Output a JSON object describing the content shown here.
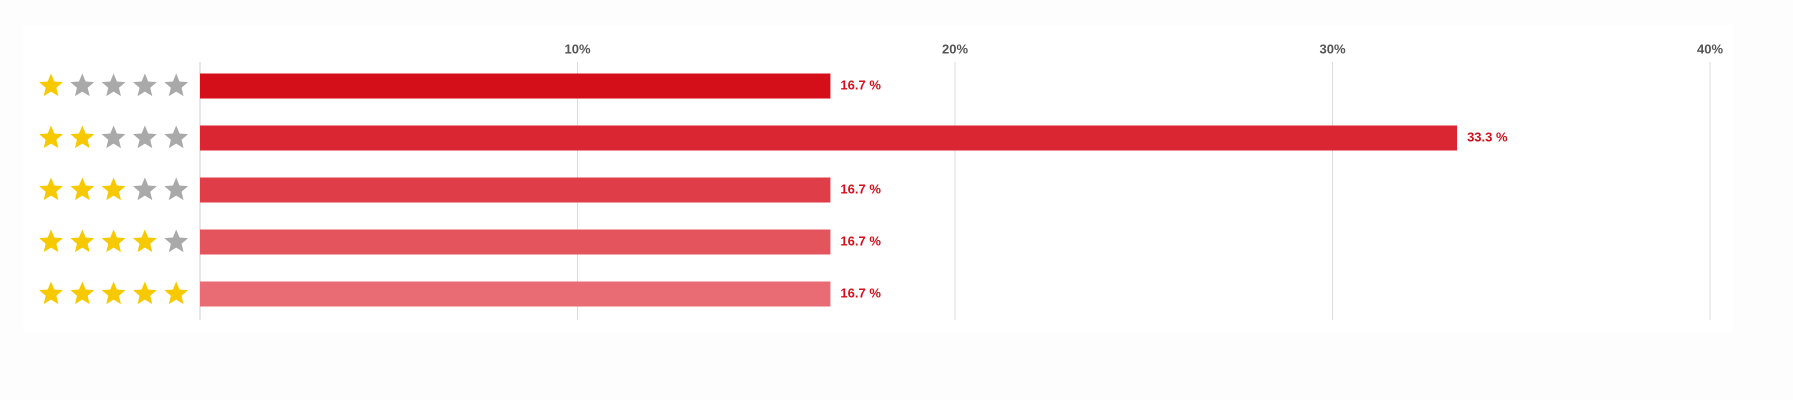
{
  "chart_data": {
    "type": "bar",
    "orientation": "horizontal",
    "stars": [
      1,
      2,
      3,
      4,
      5
    ],
    "max_stars": 5,
    "values": [
      16.7,
      33.3,
      16.7,
      16.7,
      16.7
    ],
    "value_labels": [
      "16.7 %",
      "33.3 %",
      "16.7 %",
      "16.7 %",
      "16.7 %"
    ],
    "colors": [
      "#d50f1a",
      "#da2632",
      "#df3d48",
      "#e4545d",
      "#e96b73"
    ],
    "xlim": [
      0,
      40
    ],
    "xticks": [
      {
        "value": 10,
        "label": "10%"
      },
      {
        "value": 20,
        "label": "20%"
      },
      {
        "value": 30,
        "label": "30%"
      },
      {
        "value": 40,
        "label": "40%"
      }
    ],
    "grid": true,
    "star_on_color": "#f7c900",
    "star_off_color": "#a9a9a9"
  }
}
